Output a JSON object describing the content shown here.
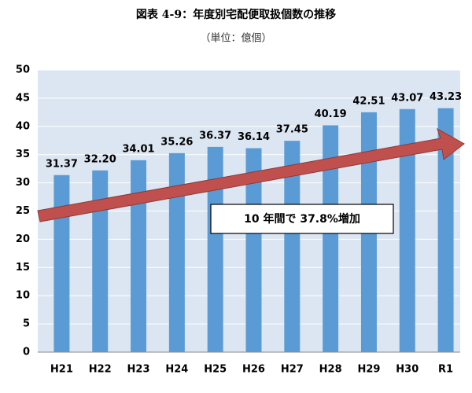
{
  "chart_data": {
    "type": "bar",
    "title": "図表 4-9：年度別宅配便取扱個数の推移",
    "subtitle": "（単位：億個）",
    "annotation": "10 年間で 37.8%増加",
    "categories": [
      "H21",
      "H22",
      "H23",
      "H24",
      "H25",
      "H26",
      "H27",
      "H28",
      "H29",
      "H30",
      "R1"
    ],
    "values": [
      31.37,
      32.2,
      34.01,
      35.26,
      36.37,
      36.14,
      37.45,
      40.19,
      42.51,
      43.07,
      43.23
    ],
    "value_labels": [
      "31.37",
      "32.20",
      "34.01",
      "35.26",
      "36.37",
      "36.14",
      "37.45",
      "40.19",
      "42.51",
      "43.07",
      "43.23"
    ],
    "color": "#5b9bd5",
    "ylim": [
      0,
      50
    ],
    "yticks": [
      0,
      5,
      10,
      15,
      20,
      25,
      30,
      35,
      40,
      45,
      50
    ],
    "grid": true
  }
}
